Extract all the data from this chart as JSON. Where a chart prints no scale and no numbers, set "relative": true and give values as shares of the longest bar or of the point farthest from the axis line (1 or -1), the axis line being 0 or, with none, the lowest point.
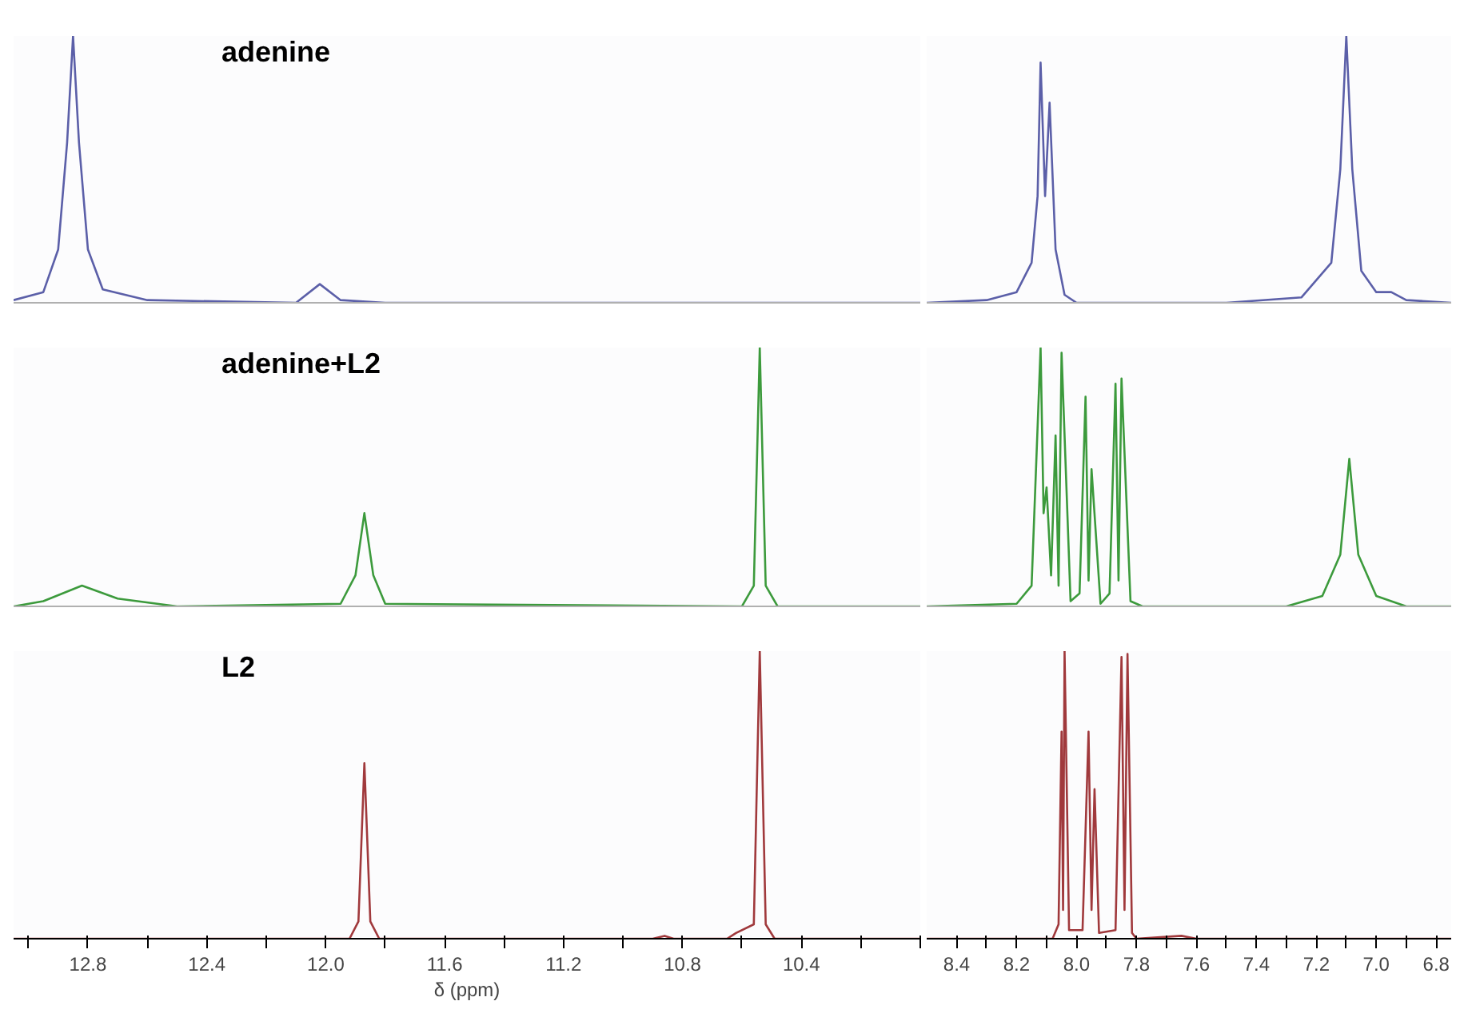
{
  "chart_data": [
    {
      "type": "line",
      "relative": true,
      "tick_labels": false,
      "xlim": [
        13.05,
        10.0
      ],
      "annotations": [
        "adenine"
      ],
      "x": [
        13.05,
        12.95,
        12.9,
        12.87,
        12.85,
        12.83,
        12.8,
        12.75,
        12.6,
        12.1,
        12.02,
        11.95,
        11.8,
        10.0
      ],
      "series": [
        {
          "color": "#5b5fa8",
          "values": [
            0.01,
            0.04,
            0.2,
            0.6,
            1,
            0.6,
            0.2,
            0.05,
            0.01,
            0.0,
            0.07,
            0.01,
            0.0,
            0.0
          ]
        }
      ]
    },
    {
      "type": "line",
      "relative": true,
      "tick_labels": false,
      "xlim": [
        8.5,
        6.75
      ],
      "x": [
        8.5,
        8.3,
        8.2,
        8.15,
        8.13,
        8.12,
        8.105,
        8.09,
        8.07,
        8.04,
        8.0,
        7.5,
        7.25,
        7.15,
        7.12,
        7.1,
        7.08,
        7.05,
        7.0,
        6.95,
        6.9,
        6.75
      ],
      "series": [
        {
          "color": "#5b5fa8",
          "values": [
            0.0,
            0.01,
            0.04,
            0.15,
            0.4,
            0.9,
            0.4,
            0.75,
            0.2,
            0.03,
            0.0,
            0.0,
            0.02,
            0.15,
            0.5,
            1,
            0.5,
            0.12,
            0.04,
            0.04,
            0.01,
            0.0
          ]
        }
      ]
    },
    {
      "type": "line",
      "relative": true,
      "tick_labels": false,
      "xlim": [
        13.05,
        10.0
      ],
      "annotations": [
        "adenine+L2"
      ],
      "x": [
        13.05,
        12.95,
        12.82,
        12.7,
        12.5,
        11.95,
        11.9,
        11.87,
        11.84,
        11.8,
        10.6,
        10.56,
        10.54,
        10.52,
        10.48,
        10.0
      ],
      "series": [
        {
          "color": "#3c9a3c",
          "values": [
            0.0,
            0.02,
            0.08,
            0.03,
            0.0,
            0.01,
            0.12,
            0.36,
            0.12,
            0.01,
            0.0,
            0.08,
            1,
            0.08,
            0.0,
            0.0
          ]
        }
      ]
    },
    {
      "type": "line",
      "relative": true,
      "tick_labels": false,
      "xlim": [
        8.5,
        6.75
      ],
      "x": [
        8.5,
        8.2,
        8.15,
        8.12,
        8.11,
        8.1,
        8.085,
        8.07,
        8.06,
        8.05,
        8.02,
        7.99,
        7.97,
        7.96,
        7.95,
        7.92,
        7.89,
        7.87,
        7.86,
        7.85,
        7.82,
        7.78,
        7.3,
        7.18,
        7.12,
        7.09,
        7.06,
        7.0,
        6.9,
        6.75
      ],
      "series": [
        {
          "color": "#3c9a3c",
          "values": [
            0.0,
            0.01,
            0.08,
            1.0,
            0.36,
            0.46,
            0.12,
            0.66,
            0.08,
            0.98,
            0.02,
            0.05,
            0.81,
            0.1,
            0.53,
            0.01,
            0.05,
            0.86,
            0.1,
            0.88,
            0.02,
            0.0,
            0.0,
            0.04,
            0.2,
            0.57,
            0.2,
            0.04,
            0.0,
            0.0
          ]
        }
      ]
    },
    {
      "type": "line",
      "relative": true,
      "tick_labels": "x",
      "xlim": [
        13.05,
        10.0
      ],
      "annotations": [
        "L2"
      ],
      "xlabel": "δ (ppm)",
      "xticks": [
        {
          "value": 13.0,
          "label": null
        },
        12.8,
        {
          "value": 12.6,
          "label": null
        },
        12.4,
        {
          "value": 12.2,
          "label": null
        },
        {
          "value": 12.0,
          "label": "12.0"
        },
        {
          "value": 11.8,
          "label": null
        },
        11.6,
        {
          "value": 11.4,
          "label": null
        },
        11.2,
        {
          "value": 11.0,
          "label": null
        },
        10.8,
        {
          "value": 10.6,
          "label": null
        },
        10.4,
        {
          "value": 10.2,
          "label": null
        },
        {
          "value": 10.0,
          "label": null
        }
      ],
      "x": [
        13.05,
        11.92,
        11.89,
        11.87,
        11.85,
        11.82,
        10.9,
        10.86,
        10.83,
        10.65,
        10.62,
        10.56,
        10.54,
        10.52,
        10.49,
        10.0
      ],
      "series": [
        {
          "color": "#a0393c",
          "values": [
            0.0,
            0.0,
            0.06,
            0.61,
            0.06,
            0.0,
            0.0,
            0.01,
            0.0,
            0.0,
            0.02,
            0.05,
            1,
            0.05,
            0.0,
            0.0
          ]
        }
      ]
    },
    {
      "type": "line",
      "relative": true,
      "tick_labels": "x",
      "xlim": [
        8.5,
        6.75
      ],
      "xticks": [
        8.4,
        {
          "value": 8.3,
          "label": null
        },
        8.2,
        {
          "value": 8.1,
          "label": null
        },
        {
          "value": 8.0,
          "label": "8.0"
        },
        {
          "value": 7.9,
          "label": null
        },
        7.8,
        {
          "value": 7.7,
          "label": null
        },
        7.6,
        {
          "value": 7.5,
          "label": null
        },
        7.4,
        {
          "value": 7.3,
          "label": null
        },
        7.2,
        {
          "value": 7.1,
          "label": null
        },
        {
          "value": 7.0,
          "label": "7.0"
        },
        {
          "value": 6.9,
          "label": null
        },
        6.8
      ],
      "x": [
        8.5,
        8.08,
        8.06,
        8.05,
        8.045,
        8.04,
        8.025,
        7.98,
        7.96,
        7.95,
        7.94,
        7.925,
        7.87,
        7.85,
        7.84,
        7.83,
        7.815,
        7.8,
        7.65,
        7.6,
        6.75
      ],
      "series": [
        {
          "color": "#a0393c",
          "values": [
            0.0,
            0.0,
            0.05,
            0.72,
            0.1,
            1.0,
            0.03,
            0.03,
            0.72,
            0.1,
            0.52,
            0.02,
            0.03,
            0.98,
            0.1,
            0.99,
            0.02,
            0.0,
            0.01,
            0.0,
            0.0
          ]
        }
      ]
    }
  ]
}
